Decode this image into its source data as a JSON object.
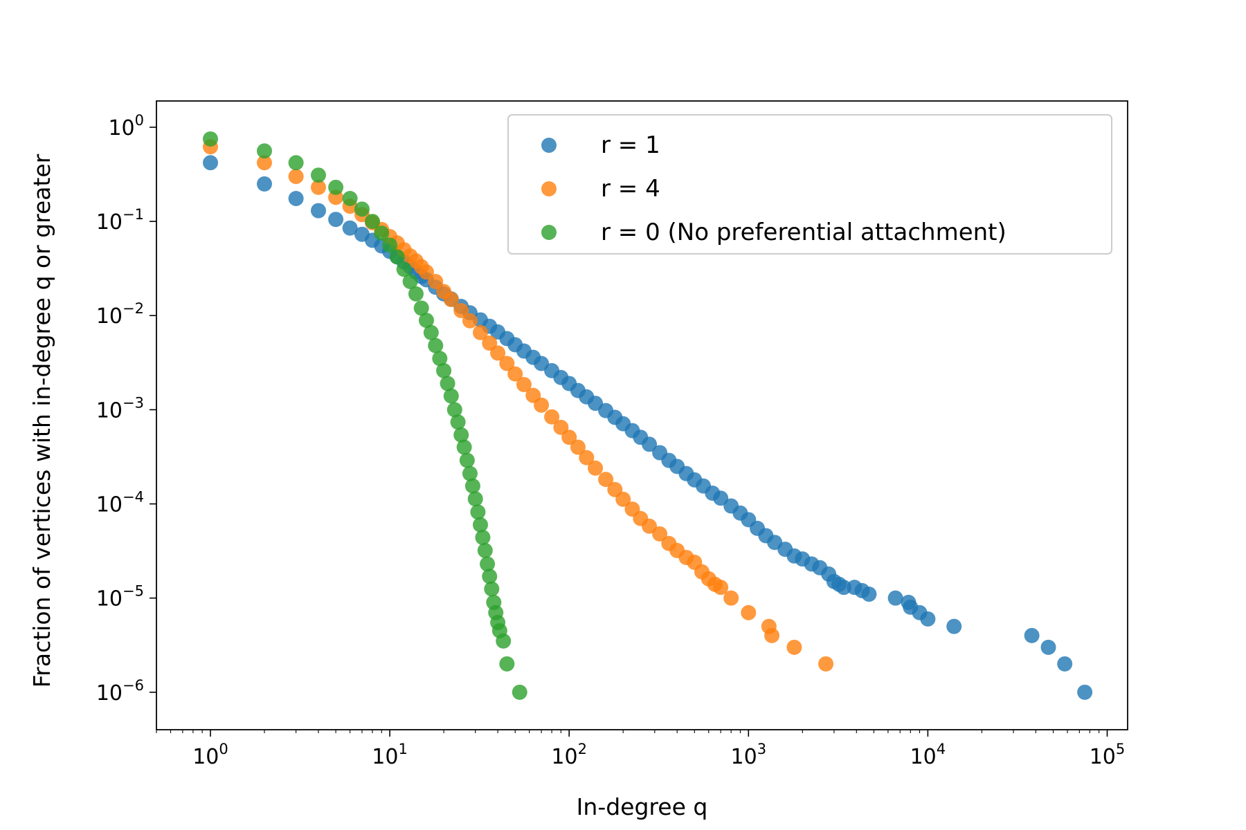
{
  "chart_data": {
    "type": "scatter",
    "title": "",
    "xlabel": "In-degree q",
    "ylabel": "Fraction of vertices with in-degree q or greater",
    "xscale": "log",
    "yscale": "log",
    "xlim": [
      0.5,
      130000
    ],
    "ylim": [
      4e-07,
      1.9
    ],
    "grid": false,
    "legend_position": "top-right",
    "x_ticks": [
      {
        "base": "10",
        "exp": "0"
      },
      {
        "base": "10",
        "exp": "1"
      },
      {
        "base": "10",
        "exp": "2"
      },
      {
        "base": "10",
        "exp": "3"
      },
      {
        "base": "10",
        "exp": "4"
      },
      {
        "base": "10",
        "exp": "5"
      }
    ],
    "y_ticks": [
      {
        "base": "10",
        "exp": "0"
      },
      {
        "base": "10",
        "exp": "−1"
      },
      {
        "base": "10",
        "exp": "−2"
      },
      {
        "base": "10",
        "exp": "−3"
      },
      {
        "base": "10",
        "exp": "−4"
      },
      {
        "base": "10",
        "exp": "−5"
      },
      {
        "base": "10",
        "exp": "−6"
      }
    ],
    "series": [
      {
        "name": "r = 1",
        "color": "#1f77b4",
        "x": [
          1,
          2,
          3,
          4,
          5,
          6,
          7,
          8,
          9,
          10,
          11,
          12,
          13,
          14,
          15,
          16,
          18,
          20,
          22,
          25,
          28,
          32,
          36,
          40,
          45,
          50,
          56,
          63,
          70,
          80,
          90,
          100,
          112,
          125,
          140,
          160,
          180,
          200,
          225,
          250,
          280,
          320,
          360,
          400,
          450,
          500,
          560,
          630,
          700,
          800,
          900,
          1000,
          1120,
          1250,
          1400,
          1600,
          1800,
          2000,
          2250,
          2500,
          2800,
          3000,
          3200,
          3400,
          3900,
          4300,
          4700,
          6600,
          7800,
          8000,
          9000,
          10000,
          14000,
          38000,
          47000,
          58000,
          75000
        ],
        "y": [
          0.42,
          0.25,
          0.175,
          0.13,
          0.105,
          0.085,
          0.073,
          0.063,
          0.055,
          0.048,
          0.042,
          0.037,
          0.033,
          0.029,
          0.026,
          0.024,
          0.02,
          0.017,
          0.015,
          0.0125,
          0.0107,
          0.009,
          0.0077,
          0.0067,
          0.0057,
          0.0049,
          0.0042,
          0.0036,
          0.0031,
          0.0026,
          0.0022,
          0.0019,
          0.0016,
          0.00137,
          0.00117,
          0.00098,
          0.00083,
          0.00071,
          0.0006,
          0.00051,
          0.00043,
          0.00035,
          0.00029,
          0.00025,
          0.00021,
          0.00018,
          0.000155,
          0.00013,
          0.000115,
          9.5e-05,
          8e-05,
          6.8e-05,
          5.5e-05,
          4.6e-05,
          3.9e-05,
          3.3e-05,
          2.8e-05,
          2.6e-05,
          2.3e-05,
          2.1e-05,
          1.8e-05,
          1.5e-05,
          1.4e-05,
          1.3e-05,
          1.3e-05,
          1.2e-05,
          1.1e-05,
          1e-05,
          9e-06,
          8e-06,
          7e-06,
          6e-06,
          5e-06,
          4e-06,
          3e-06,
          2e-06,
          1e-06
        ]
      },
      {
        "name": "r = 4",
        "color": "#ff7f0e",
        "x": [
          1,
          2,
          3,
          4,
          5,
          6,
          7,
          8,
          9,
          10,
          11,
          12,
          13,
          14,
          15,
          16,
          18,
          20,
          22,
          25,
          28,
          32,
          36,
          40,
          45,
          50,
          56,
          63,
          70,
          80,
          90,
          100,
          112,
          125,
          140,
          160,
          180,
          200,
          225,
          250,
          280,
          320,
          360,
          400,
          450,
          500,
          550,
          600,
          650,
          700,
          800,
          1000,
          1300,
          1350,
          1800,
          2700
        ],
        "y": [
          0.62,
          0.42,
          0.3,
          0.23,
          0.18,
          0.145,
          0.118,
          0.097,
          0.082,
          0.069,
          0.059,
          0.05,
          0.043,
          0.038,
          0.033,
          0.029,
          0.023,
          0.018,
          0.0148,
          0.0113,
          0.0088,
          0.0066,
          0.0051,
          0.004,
          0.0031,
          0.0024,
          0.00185,
          0.00142,
          0.00112,
          0.00084,
          0.00065,
          0.00051,
          0.0004,
          0.00031,
          0.00024,
          0.000182,
          0.000142,
          0.000112,
          8.8e-05,
          7e-05,
          5.8e-05,
          4.8e-05,
          3.8e-05,
          3.2e-05,
          2.7e-05,
          2.4e-05,
          1.9e-05,
          1.6e-05,
          1.4e-05,
          1.3e-05,
          1e-05,
          7e-06,
          5e-06,
          4e-06,
          3e-06,
          2e-06
        ]
      },
      {
        "name": "r = 0 (No preferential attachment)",
        "color": "#2ca02c",
        "x": [
          1,
          2,
          3,
          4,
          5,
          6,
          7,
          8,
          9,
          10,
          11,
          12,
          13,
          14,
          15,
          16,
          17,
          18,
          19,
          20,
          21,
          22,
          23,
          24,
          25,
          26,
          27,
          28,
          29,
          30,
          31,
          32,
          33,
          34,
          35,
          36,
          37,
          38,
          39,
          40,
          41,
          43,
          45,
          53
        ],
        "y": [
          0.75,
          0.56,
          0.42,
          0.31,
          0.23,
          0.175,
          0.135,
          0.1,
          0.075,
          0.056,
          0.042,
          0.031,
          0.023,
          0.017,
          0.012,
          0.0089,
          0.0066,
          0.0048,
          0.0035,
          0.0026,
          0.0019,
          0.0014,
          0.001,
          0.00074,
          0.00054,
          0.0004,
          0.00029,
          0.00021,
          0.000155,
          0.000113,
          8.2e-05,
          6e-05,
          4.4e-05,
          3.2e-05,
          2.3e-05,
          1.7e-05,
          1.25e-05,
          9e-06,
          7e-06,
          5.5e-06,
          4.5e-06,
          3.5e-06,
          2e-06,
          1e-06
        ]
      }
    ]
  }
}
